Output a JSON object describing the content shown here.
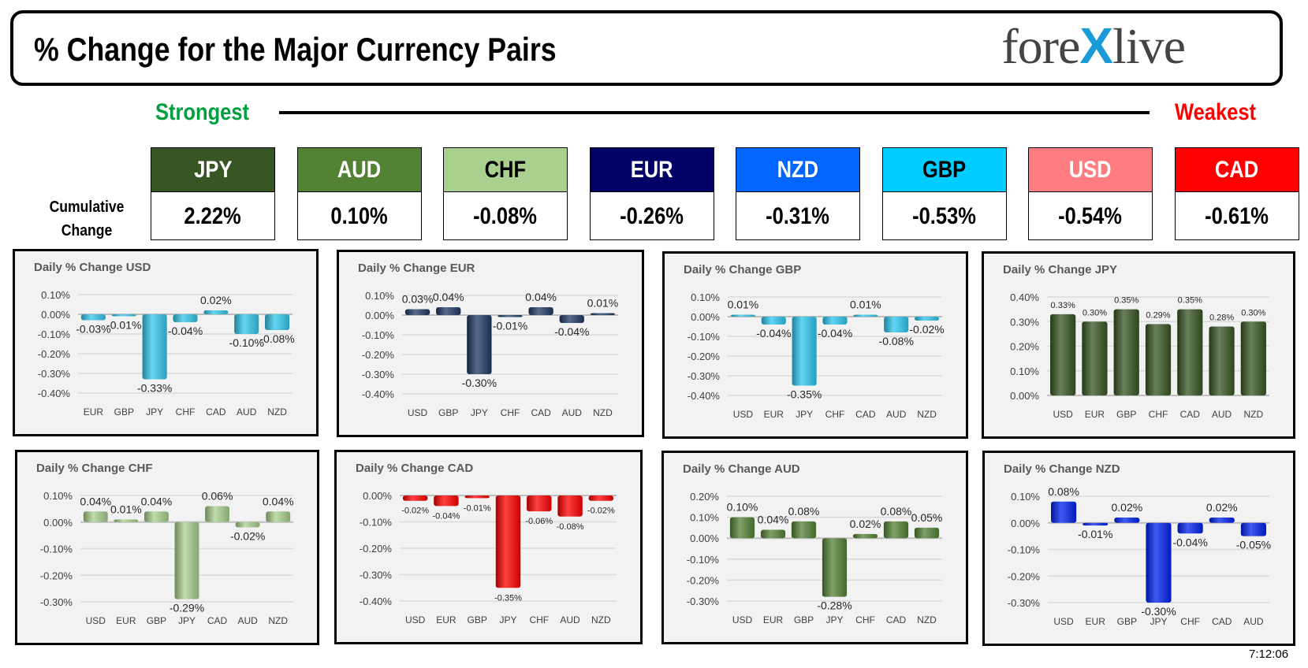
{
  "header": {
    "title": "% Change for the Major Currency Pairs",
    "logo_text": "forexlive"
  },
  "ranking": {
    "strongest_label": "Strongest",
    "weakest_label": "Weakest",
    "cumulative_label_1": "Cumulative",
    "cumulative_label_2": "Change"
  },
  "currencies": [
    {
      "code": "JPY",
      "value": "2.22%",
      "color": "#375623",
      "text_color": "#ffffff"
    },
    {
      "code": "AUD",
      "value": "0.10%",
      "color": "#548235",
      "text_color": "#ffffff"
    },
    {
      "code": "CHF",
      "value": "-0.08%",
      "color": "#a9d08e",
      "text_color": "#000000"
    },
    {
      "code": "EUR",
      "value": "-0.26%",
      "color": "#000066",
      "text_color": "#ffffff"
    },
    {
      "code": "NZD",
      "value": "-0.31%",
      "color": "#0066ff",
      "text_color": "#ffffff"
    },
    {
      "code": "GBP",
      "value": "-0.53%",
      "color": "#00ccff",
      "text_color": "#000000"
    },
    {
      "code": "USD",
      "value": "-0.54%",
      "color": "#ff7c80",
      "text_color": "#ffffff"
    },
    {
      "code": "CAD",
      "value": "-0.61%",
      "color": "#ff0000",
      "text_color": "#ffffff"
    }
  ],
  "timestamp": "7:12:06",
  "chart_data": [
    {
      "type": "bar",
      "title": "Daily % Change USD",
      "categories": [
        "EUR",
        "GBP",
        "JPY",
        "CHF",
        "CAD",
        "AUD",
        "NZD"
      ],
      "values": [
        -0.03,
        -0.01,
        -0.33,
        -0.04,
        0.02,
        -0.1,
        -0.08
      ],
      "ylim": [
        -0.4,
        0.1
      ],
      "yticks": [
        0.1,
        0.0,
        -0.1,
        -0.2,
        -0.3,
        -0.4
      ],
      "color": "#33c8ec",
      "grid": true
    },
    {
      "type": "bar",
      "title": "Daily % Change EUR",
      "categories": [
        "USD",
        "GBP",
        "JPY",
        "CHF",
        "CAD",
        "AUD",
        "NZD"
      ],
      "values": [
        0.03,
        0.04,
        -0.3,
        -0.01,
        0.04,
        -0.04,
        0.01
      ],
      "ylim": [
        -0.4,
        0.1
      ],
      "yticks": [
        0.1,
        0.0,
        -0.1,
        -0.2,
        -0.3,
        -0.4
      ],
      "color": "#1f3864",
      "grid": true
    },
    {
      "type": "bar",
      "title": "Daily % Change GBP",
      "categories": [
        "USD",
        "EUR",
        "JPY",
        "CHF",
        "CAD",
        "AUD",
        "NZD"
      ],
      "values": [
        0.01,
        -0.04,
        -0.35,
        -0.04,
        0.01,
        -0.08,
        -0.02
      ],
      "ylim": [
        -0.4,
        0.1
      ],
      "yticks": [
        0.1,
        0.0,
        -0.1,
        -0.2,
        -0.3,
        -0.4
      ],
      "color": "#2ec8f0",
      "grid": true
    },
    {
      "type": "bar",
      "title": "Daily % Change JPY",
      "categories": [
        "USD",
        "EUR",
        "GBP",
        "CHF",
        "CAD",
        "AUD",
        "NZD"
      ],
      "values": [
        0.33,
        0.3,
        0.35,
        0.29,
        0.35,
        0.28,
        0.3
      ],
      "ylim": [
        0.0,
        0.4
      ],
      "yticks": [
        0.4,
        0.3,
        0.2,
        0.1,
        0.0
      ],
      "color": "#375623",
      "grid": true
    },
    {
      "type": "bar",
      "title": "Daily % Change CHF",
      "categories": [
        "USD",
        "EUR",
        "GBP",
        "JPY",
        "CAD",
        "AUD",
        "NZD"
      ],
      "values": [
        0.04,
        0.01,
        0.04,
        -0.29,
        0.06,
        -0.02,
        0.04
      ],
      "ylim": [
        -0.3,
        0.1
      ],
      "yticks": [
        0.1,
        0.0,
        -0.1,
        -0.2,
        -0.3
      ],
      "color": "#a9d08e",
      "grid": true
    },
    {
      "type": "bar",
      "title": "Daily % Change CAD",
      "categories": [
        "USD",
        "EUR",
        "GBP",
        "JPY",
        "CHF",
        "AUD",
        "NZD"
      ],
      "values": [
        -0.02,
        -0.04,
        -0.01,
        -0.35,
        -0.06,
        -0.08,
        -0.02
      ],
      "ylim": [
        -0.4,
        0.0
      ],
      "yticks": [
        0.0,
        -0.1,
        -0.2,
        -0.3,
        -0.4
      ],
      "color": "#ff0000",
      "grid": true
    },
    {
      "type": "bar",
      "title": "Daily % Change AUD",
      "categories": [
        "USD",
        "EUR",
        "GBP",
        "JPY",
        "CHF",
        "CAD",
        "NZD"
      ],
      "values": [
        0.1,
        0.04,
        0.08,
        -0.28,
        0.02,
        0.08,
        0.05
      ],
      "ylim": [
        -0.3,
        0.2
      ],
      "yticks": [
        0.2,
        0.1,
        0.0,
        -0.1,
        -0.2,
        -0.3
      ],
      "color": "#548235",
      "grid": true
    },
    {
      "type": "bar",
      "title": "Daily % Change NZD",
      "categories": [
        "USD",
        "EUR",
        "GBP",
        "JPY",
        "CHF",
        "CAD",
        "AUD"
      ],
      "values": [
        0.08,
        -0.01,
        0.02,
        -0.3,
        -0.04,
        0.02,
        -0.05
      ],
      "ylim": [
        -0.3,
        0.1
      ],
      "yticks": [
        0.1,
        0.0,
        -0.1,
        -0.2,
        -0.3
      ],
      "color": "#0022ee",
      "grid": true
    }
  ]
}
